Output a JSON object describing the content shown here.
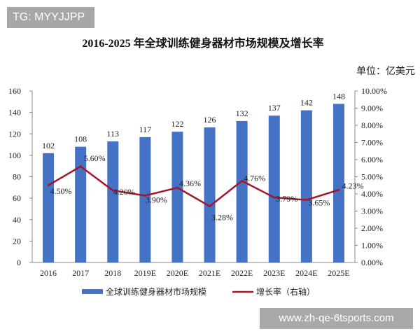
{
  "watermark_top": "TG: MYYJJPP",
  "watermark_bottom": "www.zh-qe-6tsports.com",
  "chart_data": {
    "type": "bar+line",
    "title": "2016-2025 年全球训练健身器材市场规模及增长率",
    "unit": "单位：亿美元",
    "categories": [
      "2016",
      "2017",
      "2018",
      "2019E",
      "2020E",
      "2021E",
      "2022E",
      "2023E",
      "2024E",
      "2025E"
    ],
    "series": [
      {
        "name": "全球训练健身器材市场规模",
        "type": "bar",
        "axis": "left",
        "color": "#4472c4",
        "values": [
          102,
          108,
          113,
          117,
          122,
          126,
          132,
          137,
          142,
          148
        ]
      },
      {
        "name": "增长率（右轴）",
        "type": "line",
        "axis": "right",
        "color": "#a0182a",
        "values": [
          4.5,
          5.6,
          4.2,
          3.9,
          4.36,
          3.28,
          4.76,
          3.79,
          3.65,
          4.23
        ],
        "labels": [
          "4.50%",
          "5.60%",
          "4.20%",
          "3.90%",
          "4.36%",
          "3.28%",
          "4.76%",
          "3.79%",
          "3.65%",
          "4.23%"
        ]
      }
    ],
    "left_axis": {
      "ylim": [
        0,
        160
      ],
      "ticks": [
        "0",
        "20",
        "40",
        "60",
        "80",
        "100",
        "120",
        "140",
        "160"
      ]
    },
    "right_axis": {
      "ylim": [
        0,
        10
      ],
      "ticks": [
        "0.00%",
        "1.00%",
        "2.00%",
        "3.00%",
        "4.00%",
        "5.00%",
        "6.00%",
        "7.00%",
        "8.00%",
        "9.00%",
        "10.00%"
      ]
    },
    "grid": false,
    "legend": "bottom"
  }
}
